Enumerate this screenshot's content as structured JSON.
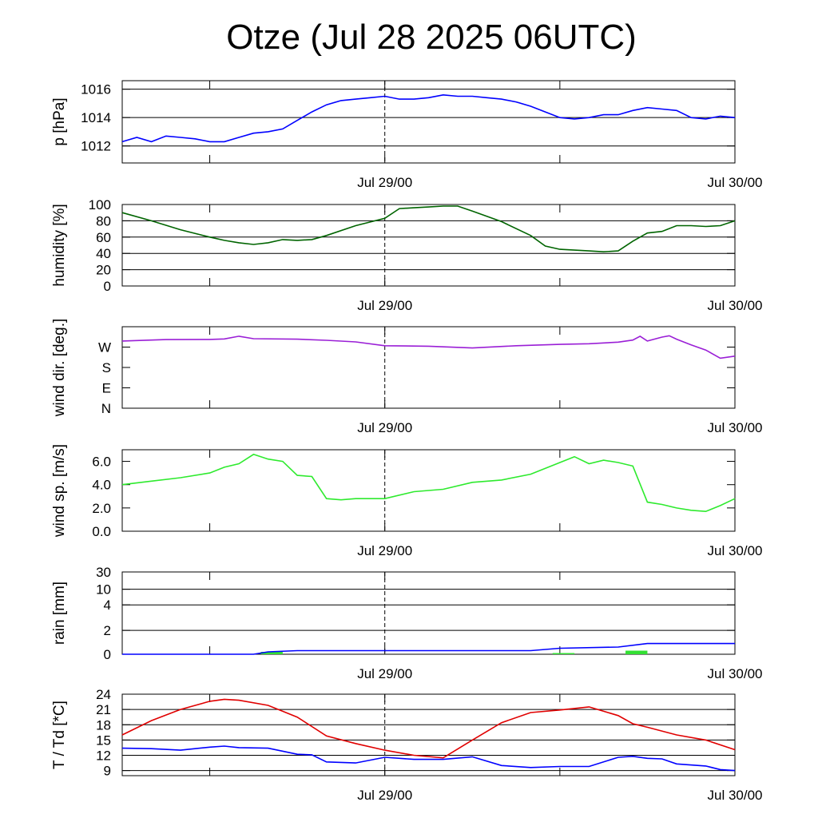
{
  "title": "Otze (Jul 28 2025 06UTC)",
  "x_axis": {
    "start": "2025-07-28T06:00Z",
    "end": "2025-07-30T00:00Z",
    "tick_labels": [
      "Jul 29/00",
      "Jul 30/00"
    ],
    "dashed_marker": "Jul 29/00"
  },
  "colors": {
    "pressure": "#0000ff",
    "humidity": "#006400",
    "wind_dir": "#9a1fd6",
    "wind_speed": "#2eea2e",
    "rain_total": "#0000ff",
    "rain_bar": "#33e033",
    "temperature": "#e00000",
    "dewpoint": "#0000ff"
  },
  "chart_data": [
    {
      "type": "line",
      "panel": "pressure",
      "ylabel": "p [hPa]",
      "ylim": [
        1010.8,
        1016.6
      ],
      "yticks": [
        "1012",
        "1014",
        "1016"
      ],
      "grid": true,
      "series": [
        {
          "x": [
            "2025-07-28T06:00Z",
            "2025-07-28T07:00Z",
            "2025-07-28T08:00Z",
            "2025-07-28T09:00Z",
            "2025-07-28T10:00Z",
            "2025-07-28T11:00Z",
            "2025-07-28T12:00Z",
            "2025-07-28T13:00Z",
            "2025-07-28T14:00Z",
            "2025-07-28T15:00Z",
            "2025-07-28T16:00Z",
            "2025-07-28T17:00Z",
            "2025-07-28T18:00Z",
            "2025-07-28T19:00Z",
            "2025-07-28T20:00Z",
            "2025-07-28T21:00Z",
            "2025-07-28T22:00Z",
            "2025-07-28T23:00Z",
            "2025-07-29T00:00Z",
            "2025-07-29T01:00Z",
            "2025-07-29T02:00Z",
            "2025-07-29T03:00Z",
            "2025-07-29T04:00Z",
            "2025-07-29T05:00Z",
            "2025-07-29T06:00Z",
            "2025-07-29T07:00Z",
            "2025-07-29T08:00Z",
            "2025-07-29T09:00Z",
            "2025-07-29T10:00Z",
            "2025-07-29T11:00Z",
            "2025-07-29T12:00Z",
            "2025-07-29T13:00Z",
            "2025-07-29T14:00Z",
            "2025-07-29T15:00Z",
            "2025-07-29T16:00Z",
            "2025-07-29T17:00Z",
            "2025-07-29T18:00Z",
            "2025-07-29T19:00Z",
            "2025-07-29T20:00Z",
            "2025-07-29T21:00Z",
            "2025-07-29T22:00Z",
            "2025-07-29T23:00Z",
            "2025-07-30T00:00Z"
          ],
          "values": [
            1012.3,
            1012.6,
            1012.3,
            1012.7,
            1012.6,
            1012.5,
            1012.3,
            1012.3,
            1012.6,
            1012.9,
            1013.0,
            1013.2,
            1013.8,
            1014.4,
            1014.9,
            1015.2,
            1015.3,
            1015.4,
            1015.5,
            1015.3,
            1015.3,
            1015.4,
            1015.6,
            1015.5,
            1015.5,
            1015.4,
            1015.3,
            1015.1,
            1014.8,
            1014.4,
            1014.0,
            1013.9,
            1014.0,
            1014.2,
            1014.2,
            1014.5,
            1014.7,
            1014.6,
            1014.5,
            1014.0,
            1013.9,
            1014.1,
            1014.0
          ]
        }
      ]
    },
    {
      "type": "line",
      "panel": "humidity",
      "ylabel": "humidity [%]",
      "ylim": [
        0,
        100
      ],
      "yticks": [
        "0",
        "20",
        "40",
        "60",
        "80",
        "100"
      ],
      "grid": true,
      "series": [
        {
          "x": [
            "2025-07-28T06:00Z",
            "2025-07-28T08:00Z",
            "2025-07-28T10:00Z",
            "2025-07-28T12:00Z",
            "2025-07-28T13:00Z",
            "2025-07-28T14:00Z",
            "2025-07-28T15:00Z",
            "2025-07-28T16:00Z",
            "2025-07-28T17:00Z",
            "2025-07-28T18:00Z",
            "2025-07-28T19:00Z",
            "2025-07-28T20:00Z",
            "2025-07-28T22:00Z",
            "2025-07-29T00:00Z",
            "2025-07-29T01:00Z",
            "2025-07-29T02:00Z",
            "2025-07-29T03:00Z",
            "2025-07-29T04:00Z",
            "2025-07-29T05:00Z",
            "2025-07-29T06:00Z",
            "2025-07-29T08:00Z",
            "2025-07-29T10:00Z",
            "2025-07-29T11:00Z",
            "2025-07-29T12:00Z",
            "2025-07-29T13:00Z",
            "2025-07-29T14:00Z",
            "2025-07-29T15:00Z",
            "2025-07-29T16:00Z",
            "2025-07-29T17:00Z",
            "2025-07-29T18:00Z",
            "2025-07-29T19:00Z",
            "2025-07-29T20:00Z",
            "2025-07-29T21:00Z",
            "2025-07-29T22:00Z",
            "2025-07-29T23:00Z",
            "2025-07-30T00:00Z"
          ],
          "values": [
            90,
            80,
            69,
            60,
            56,
            53,
            51,
            53,
            57,
            56,
            57,
            62,
            74,
            83,
            95,
            96,
            97,
            98,
            98,
            92,
            79,
            62,
            49,
            45,
            44,
            43,
            42,
            43,
            55,
            65,
            67,
            74,
            74,
            73,
            74,
            80
          ]
        }
      ]
    },
    {
      "type": "line",
      "panel": "wind_direction",
      "ylabel": "wind dir. [deg.]",
      "ylim": [
        0,
        360
      ],
      "yticks": [
        "N",
        "E",
        "S",
        "W"
      ],
      "grid": false,
      "series": [
        {
          "x": [
            "2025-07-28T06:00Z",
            "2025-07-28T09:00Z",
            "2025-07-28T12:00Z",
            "2025-07-28T13:00Z",
            "2025-07-28T14:00Z",
            "2025-07-28T15:00Z",
            "2025-07-28T18:00Z",
            "2025-07-28T20:00Z",
            "2025-07-28T22:00Z",
            "2025-07-29T00:00Z",
            "2025-07-29T03:00Z",
            "2025-07-29T06:00Z",
            "2025-07-29T09:00Z",
            "2025-07-29T12:00Z",
            "2025-07-29T14:00Z",
            "2025-07-29T16:00Z",
            "2025-07-29T17:00Z",
            "2025-07-29T17:30Z",
            "2025-07-29T18:00Z",
            "2025-07-29T19:00Z",
            "2025-07-29T19:30Z",
            "2025-07-29T20:00Z",
            "2025-07-29T21:00Z",
            "2025-07-29T22:00Z",
            "2025-07-29T23:00Z",
            "2025-07-30T00:00Z"
          ],
          "values": [
            297,
            303,
            304,
            306,
            318,
            307,
            305,
            300,
            293,
            276,
            274,
            266,
            276,
            282,
            285,
            292,
            301,
            318,
            297,
            314,
            320,
            305,
            280,
            257,
            221,
            230
          ]
        }
      ]
    },
    {
      "type": "line",
      "panel": "wind_speed",
      "ylabel": "wind sp. [m/s]",
      "ylim": [
        0,
        7.0
      ],
      "yticks": [
        "0.0",
        "2.0",
        "4.0",
        "6.0"
      ],
      "grid": false,
      "series": [
        {
          "x": [
            "2025-07-28T06:00Z",
            "2025-07-28T08:00Z",
            "2025-07-28T10:00Z",
            "2025-07-28T12:00Z",
            "2025-07-28T13:00Z",
            "2025-07-28T14:00Z",
            "2025-07-28T15:00Z",
            "2025-07-28T16:00Z",
            "2025-07-28T17:00Z",
            "2025-07-28T18:00Z",
            "2025-07-28T19:00Z",
            "2025-07-28T20:00Z",
            "2025-07-28T21:00Z",
            "2025-07-28T22:00Z",
            "2025-07-29T00:00Z",
            "2025-07-29T02:00Z",
            "2025-07-29T04:00Z",
            "2025-07-29T06:00Z",
            "2025-07-29T08:00Z",
            "2025-07-29T10:00Z",
            "2025-07-29T12:00Z",
            "2025-07-29T13:00Z",
            "2025-07-29T14:00Z",
            "2025-07-29T15:00Z",
            "2025-07-29T16:00Z",
            "2025-07-29T17:00Z",
            "2025-07-29T18:00Z",
            "2025-07-29T19:00Z",
            "2025-07-29T20:00Z",
            "2025-07-29T21:00Z",
            "2025-07-29T22:00Z",
            "2025-07-29T23:00Z",
            "2025-07-30T00:00Z"
          ],
          "values": [
            4.0,
            4.3,
            4.6,
            5.0,
            5.5,
            5.8,
            6.6,
            6.2,
            6.0,
            4.8,
            4.7,
            2.8,
            2.7,
            2.8,
            2.8,
            3.4,
            3.6,
            4.2,
            4.4,
            4.9,
            5.9,
            6.4,
            5.8,
            6.1,
            5.9,
            5.6,
            2.5,
            2.3,
            2.0,
            1.8,
            1.7,
            2.2,
            2.8
          ]
        }
      ]
    },
    {
      "type": "area",
      "panel": "rain",
      "ylabel": "rain [mm]",
      "yticks": [
        "0",
        "2",
        "4",
        "10",
        "30"
      ],
      "grid": true,
      "series": [
        {
          "name": "",
          "x": [
            "2025-07-28T06:00Z",
            "2025-07-28T15:00Z",
            "2025-07-28T16:00Z",
            "2025-07-28T18:00Z",
            "2025-07-29T00:00Z",
            "2025-07-29T10:00Z",
            "2025-07-29T12:00Z",
            "2025-07-29T16:00Z",
            "2025-07-29T18:00Z",
            "2025-07-30T00:00Z"
          ],
          "values": [
            0.0,
            0.0,
            0.2,
            0.3,
            0.3,
            0.3,
            0.5,
            0.6,
            0.9,
            0.9
          ]
        }
      ],
      "bars": [
        {
          "start": "2025-07-28T15:30Z",
          "end": "2025-07-28T17:00Z",
          "value": 0.2
        },
        {
          "start": "2025-07-29T11:30Z",
          "end": "2025-07-29T13:00Z",
          "value": 0.1
        },
        {
          "start": "2025-07-29T16:30Z",
          "end": "2025-07-29T18:00Z",
          "value": 0.3
        }
      ]
    },
    {
      "type": "line",
      "panel": "temperature",
      "ylabel": "T / Td [*C]",
      "ylim": [
        8,
        24
      ],
      "yticks": [
        "9",
        "12",
        "15",
        "18",
        "21",
        "24"
      ],
      "grid": true,
      "series": [
        {
          "name": "T",
          "x": [
            "2025-07-28T06:00Z",
            "2025-07-28T08:00Z",
            "2025-07-28T10:00Z",
            "2025-07-28T12:00Z",
            "2025-07-28T13:00Z",
            "2025-07-28T14:00Z",
            "2025-07-28T16:00Z",
            "2025-07-28T18:00Z",
            "2025-07-28T20:00Z",
            "2025-07-28T22:00Z",
            "2025-07-29T00:00Z",
            "2025-07-29T02:00Z",
            "2025-07-29T04:00Z",
            "2025-07-29T06:00Z",
            "2025-07-29T08:00Z",
            "2025-07-29T10:00Z",
            "2025-07-29T12:00Z",
            "2025-07-29T14:00Z",
            "2025-07-29T16:00Z",
            "2025-07-29T17:00Z",
            "2025-07-29T18:00Z",
            "2025-07-29T20:00Z",
            "2025-07-29T22:00Z",
            "2025-07-30T00:00Z"
          ],
          "values": [
            16.0,
            18.8,
            21.0,
            22.6,
            23.0,
            22.8,
            21.8,
            19.5,
            15.8,
            14.3,
            13.0,
            12.0,
            11.5,
            15.0,
            18.4,
            20.4,
            20.9,
            21.5,
            19.8,
            18.2,
            17.5,
            16.0,
            15.0,
            13.1
          ]
        },
        {
          "name": "Td",
          "x": [
            "2025-07-28T06:00Z",
            "2025-07-28T08:00Z",
            "2025-07-28T10:00Z",
            "2025-07-28T12:00Z",
            "2025-07-28T13:00Z",
            "2025-07-28T14:00Z",
            "2025-07-28T16:00Z",
            "2025-07-28T18:00Z",
            "2025-07-28T19:00Z",
            "2025-07-28T20:00Z",
            "2025-07-28T22:00Z",
            "2025-07-29T00:00Z",
            "2025-07-29T02:00Z",
            "2025-07-29T04:00Z",
            "2025-07-29T06:00Z",
            "2025-07-29T08:00Z",
            "2025-07-29T10:00Z",
            "2025-07-29T12:00Z",
            "2025-07-29T14:00Z",
            "2025-07-29T16:00Z",
            "2025-07-29T17:00Z",
            "2025-07-29T18:00Z",
            "2025-07-29T19:00Z",
            "2025-07-29T20:00Z",
            "2025-07-29T22:00Z",
            "2025-07-29T23:00Z",
            "2025-07-30T00:00Z"
          ],
          "values": [
            13.4,
            13.3,
            13.0,
            13.6,
            13.8,
            13.5,
            13.4,
            12.2,
            12.1,
            10.7,
            10.5,
            11.6,
            11.2,
            11.2,
            11.7,
            10.0,
            9.6,
            9.8,
            9.8,
            11.6,
            11.8,
            11.4,
            11.3,
            10.3,
            9.9,
            9.2,
            9.0
          ]
        }
      ]
    }
  ]
}
